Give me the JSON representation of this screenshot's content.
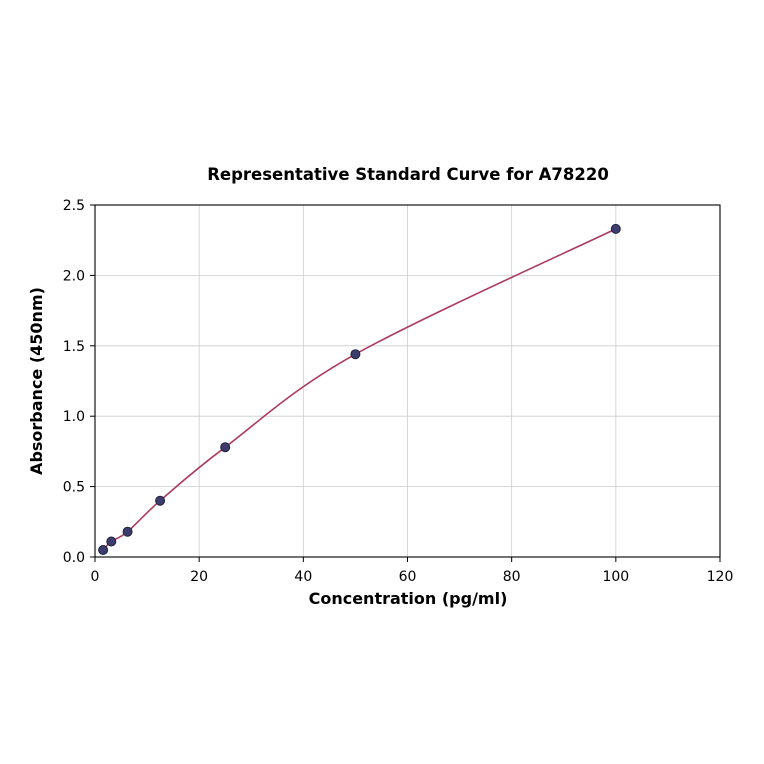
{
  "chart_data": {
    "type": "scatter",
    "title": "Representative Standard Curve for A78220",
    "xlabel": "Concentration (pg/ml)",
    "ylabel": "Absorbance (450nm)",
    "x": [
      1.56,
      3.12,
      6.25,
      12.5,
      25,
      50,
      100
    ],
    "y": [
      0.05,
      0.11,
      0.18,
      0.4,
      0.78,
      1.44,
      2.33
    ],
    "xlim": [
      0,
      120
    ],
    "ylim": [
      0,
      2.5
    ],
    "xticks": [
      0,
      20,
      40,
      60,
      80,
      100,
      120
    ],
    "yticks": [
      0.0,
      0.5,
      1.0,
      1.5,
      2.0,
      2.5
    ],
    "grid": true,
    "legend": "none",
    "line_color": "#ad3a5e",
    "marker_color": "#3c3c6e",
    "marker_edge_color": "#22223d",
    "grid_color": "#cccccc",
    "frame_color": "#000000",
    "background_color": "#ffffff"
  }
}
